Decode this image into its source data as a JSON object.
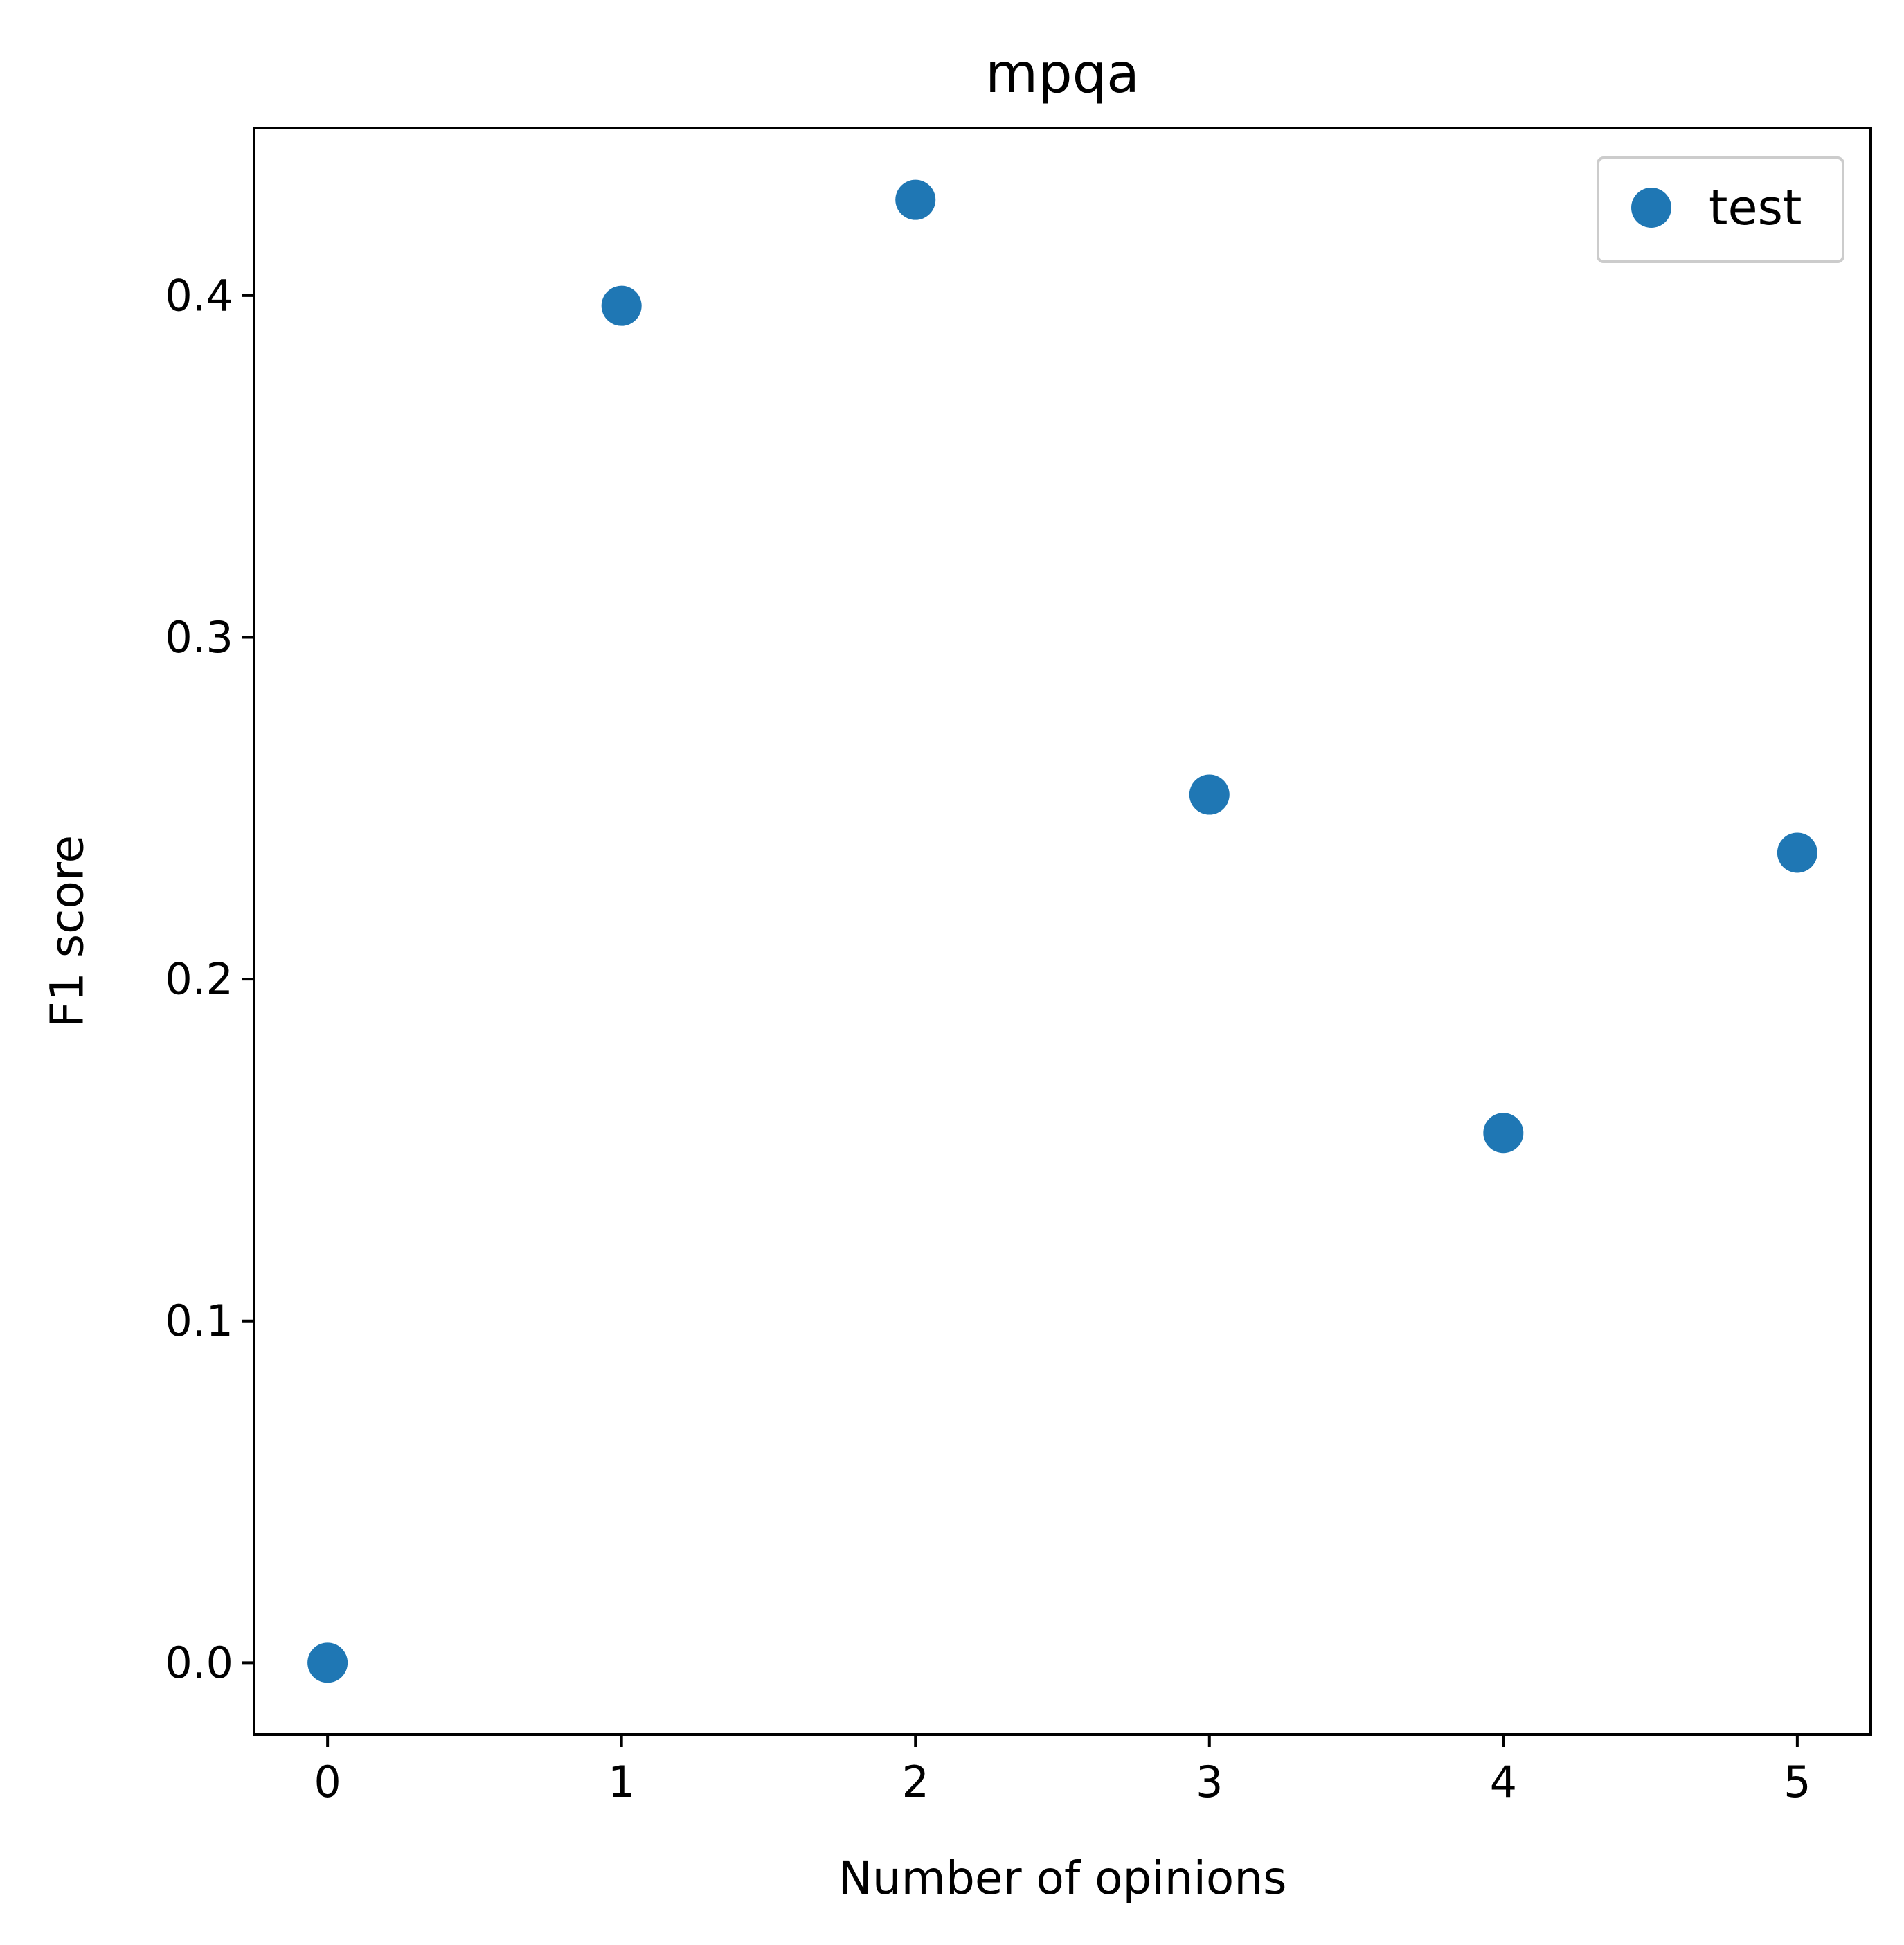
{
  "chart_data": {
    "type": "scatter",
    "title": "mpqa",
    "xlabel": "Number of opinions",
    "ylabel": "F1 score",
    "xlim": [
      -0.25,
      5.25
    ],
    "ylim": [
      -0.021,
      0.449
    ],
    "xticks": [
      0,
      1,
      2,
      3,
      4,
      5
    ],
    "xtick_labels": [
      "0",
      "1",
      "2",
      "3",
      "4",
      "5"
    ],
    "yticks": [
      0.0,
      0.1,
      0.2,
      0.3,
      0.4
    ],
    "ytick_labels": [
      "0.0",
      "0.1",
      "0.2",
      "0.3",
      "0.4"
    ],
    "grid": false,
    "legend_position": "top-right",
    "series": [
      {
        "name": "test",
        "color": "#1f77b4",
        "x": [
          0,
          1,
          2,
          3,
          4,
          5
        ],
        "y": [
          0.0,
          0.397,
          0.428,
          0.254,
          0.155,
          0.237
        ]
      }
    ]
  }
}
